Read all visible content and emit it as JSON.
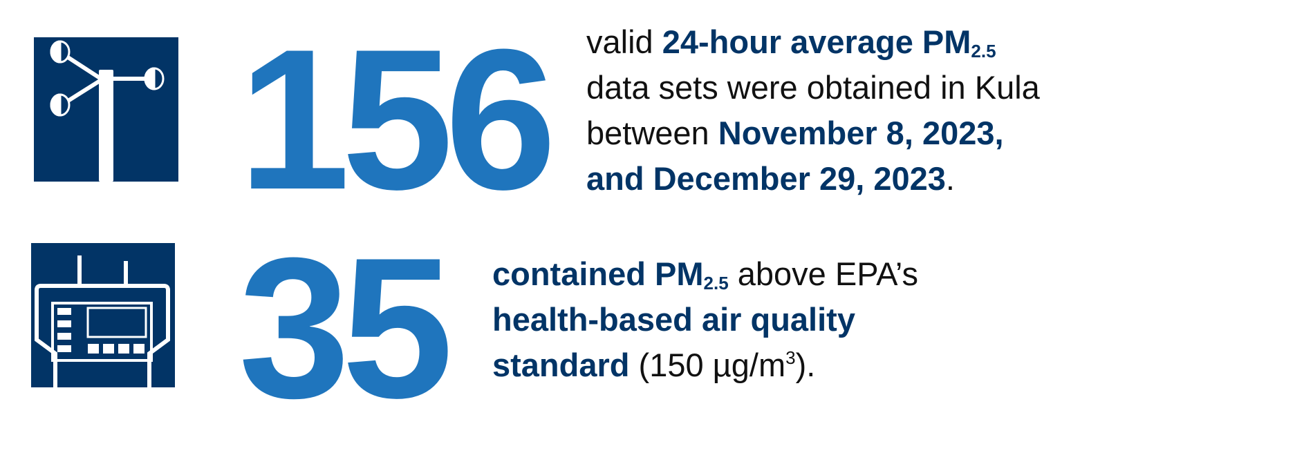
{
  "colors": {
    "navy": "#023466",
    "blue": "#1f75bd"
  },
  "stat1": {
    "icon": "anemometer-icon",
    "number": "156",
    "t1": "valid ",
    "b1": "24-hour average PM",
    "sub1": "2.5",
    "t2": "data sets were obtained in Kula",
    "t3": "between ",
    "b3": "November 8, 2023,",
    "b4": "and December 29, 2023",
    "t4": "."
  },
  "stat2": {
    "icon": "air-monitor-device-icon",
    "number": "35",
    "b1": "contained PM",
    "sub1": "2.5",
    "t1": " above EPA’s",
    "b2": "health-based air quality",
    "b3": "standard",
    "t3": " (150 µg/m",
    "sup3": "3",
    "t3b": ")."
  }
}
